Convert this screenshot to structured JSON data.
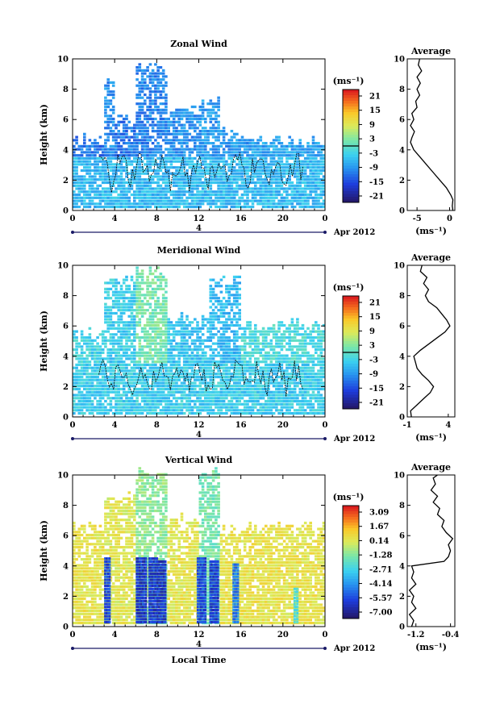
{
  "chart_data": [
    {
      "type": "heatmap",
      "title": "Zonal Wind",
      "xlabel": "",
      "ylabel": "Height (km)",
      "xlim": [
        0,
        24
      ],
      "ylim": [
        0,
        10
      ],
      "x_ticks": [
        "0",
        "4",
        "8",
        "12",
        "16",
        "20",
        "0"
      ],
      "y_ticks": [
        "0",
        "2",
        "4",
        "6",
        "8",
        "10"
      ],
      "date_axis": {
        "mid_label": "4",
        "label": "Apr 2012"
      },
      "colorbar": {
        "unit": "(ms⁻¹)",
        "ticks": [
          "21",
          "15",
          "9",
          "3",
          "-3",
          "-9",
          "-15",
          "-21"
        ],
        "zero_line_value": 0
      },
      "field": {
        "columns": [
          {
            "x0": 0,
            "x1": 3,
            "top": 4.6,
            "base_value": -12
          },
          {
            "x0": 3,
            "x1": 4,
            "top": 8.5,
            "base_value": -10
          },
          {
            "x0": 4,
            "x1": 6,
            "top": 6.0,
            "base_value": -12
          },
          {
            "x0": 6,
            "x1": 9,
            "top": 9.5,
            "base_value": -11
          },
          {
            "x0": 9,
            "x1": 12,
            "top": 6.5,
            "base_value": -10
          },
          {
            "x0": 12,
            "x1": 14,
            "top": 7.2,
            "base_value": -9
          },
          {
            "x0": 14,
            "x1": 17,
            "top": 5.2,
            "base_value": -9
          },
          {
            "x0": 17,
            "x1": 24,
            "top": 4.5,
            "base_value": -8
          }
        ],
        "low_level_value": -6
      },
      "profile": {
        "title": "Average",
        "xlabel": "(ms⁻¹)",
        "x_ticks": [
          "-5",
          "0"
        ],
        "xlim": [
          -6.5,
          0.8
        ],
        "y": [
          0.0,
          0.3,
          0.7,
          1.0,
          1.5,
          2.0,
          2.5,
          3.0,
          3.5,
          4.0,
          4.5,
          4.8,
          5.2,
          5.6,
          6.0,
          6.4,
          6.8,
          7.2,
          7.6,
          8.0,
          8.4,
          8.8,
          9.2,
          9.6,
          10.0
        ],
        "values": [
          0.5,
          0.4,
          0.5,
          0.2,
          -0.5,
          -1.5,
          -2.5,
          -3.5,
          -4.5,
          -5.5,
          -6.0,
          -5.8,
          -5.4,
          -6.0,
          -5.5,
          -5.8,
          -5.0,
          -5.2,
          -4.6,
          -5.0,
          -4.5,
          -5.0,
          -4.3,
          -4.8,
          -4.6
        ]
      }
    },
    {
      "type": "heatmap",
      "title": "Meridional Wind",
      "xlabel": "",
      "ylabel": "Height (km)",
      "xlim": [
        0,
        24
      ],
      "ylim": [
        0,
        10
      ],
      "x_ticks": [
        "0",
        "4",
        "8",
        "12",
        "16",
        "20",
        "0"
      ],
      "y_ticks": [
        "0",
        "2",
        "4",
        "6",
        "8",
        "10"
      ],
      "date_axis": {
        "mid_label": "4",
        "label": "Apr 2012"
      },
      "colorbar": {
        "unit": "(ms⁻¹)",
        "ticks": [
          "21",
          "15",
          "9",
          "3",
          "-3",
          "-9",
          "-15",
          "-21"
        ],
        "zero_line_value": 0
      },
      "field": {
        "columns": [
          {
            "x0": 0,
            "x1": 3,
            "top": 5.5,
            "base_value": -3
          },
          {
            "x0": 3,
            "x1": 6,
            "top": 9.0,
            "base_value": -4
          },
          {
            "x0": 6,
            "x1": 9,
            "top": 9.5,
            "base_value": 2
          },
          {
            "x0": 9,
            "x1": 13,
            "top": 6.5,
            "base_value": -5
          },
          {
            "x0": 13,
            "x1": 16,
            "top": 9.0,
            "base_value": -6
          },
          {
            "x0": 16,
            "x1": 24,
            "top": 6.0,
            "base_value": -2
          }
        ],
        "low_level_value": -4
      },
      "profile": {
        "title": "Average",
        "xlabel": "(ms⁻¹)",
        "x_ticks": [
          "-1",
          "4"
        ],
        "xlim": [
          -1.0,
          4.8
        ],
        "y": [
          0.0,
          0.4,
          0.8,
          1.2,
          1.6,
          2.0,
          2.4,
          2.8,
          3.2,
          3.6,
          4.0,
          4.4,
          4.8,
          5.2,
          5.6,
          6.0,
          6.4,
          6.8,
          7.2,
          7.6,
          8.0,
          8.4,
          8.8,
          9.2,
          9.6,
          10.0
        ],
        "values": [
          -0.5,
          -0.6,
          0.2,
          1.0,
          1.8,
          2.2,
          1.6,
          0.8,
          0.2,
          0.0,
          -0.2,
          0.6,
          1.6,
          2.6,
          3.6,
          4.2,
          3.8,
          3.2,
          2.6,
          1.6,
          1.2,
          1.6,
          1.0,
          1.4,
          0.6,
          0.8
        ]
      }
    },
    {
      "type": "heatmap",
      "title": "Vertical Wind",
      "xlabel": "Local Time",
      "ylabel": "Height (km)",
      "xlim": [
        0,
        24
      ],
      "ylim": [
        0,
        10
      ],
      "x_ticks": [
        "0",
        "4",
        "8",
        "12",
        "16",
        "20",
        "0"
      ],
      "y_ticks": [
        "0",
        "2",
        "4",
        "6",
        "8",
        "10"
      ],
      "date_axis": {
        "mid_label": "4",
        "label": "Apr 2012"
      },
      "colorbar": {
        "unit": "(ms⁻¹)",
        "ticks": [
          "3.09",
          "1.67",
          "0.14",
          "-1.28",
          "-2.71",
          "-4.14",
          "-5.57",
          "-7.00"
        ]
      },
      "field": {
        "columns": [
          {
            "x0": 0,
            "x1": 3,
            "top": 6.5,
            "base_value": 0.5
          },
          {
            "x0": 3,
            "x1": 6,
            "top": 8.5,
            "base_value": 0.3
          },
          {
            "x0": 6,
            "x1": 9,
            "top": 10.0,
            "base_value": -1.0
          },
          {
            "x0": 9,
            "x1": 12,
            "top": 7.0,
            "base_value": 0.4
          },
          {
            "x0": 12,
            "x1": 14,
            "top": 10.0,
            "base_value": -1.5
          },
          {
            "x0": 14,
            "x1": 24,
            "top": 6.5,
            "base_value": 0.5
          }
        ],
        "downdrafts": [
          {
            "x0": 3.0,
            "x1": 3.5,
            "top": 4.5,
            "value": -6.5
          },
          {
            "x0": 6.0,
            "x1": 7.0,
            "top": 4.5,
            "value": -7.0
          },
          {
            "x0": 7.2,
            "x1": 8.0,
            "top": 4.5,
            "value": -6.8
          },
          {
            "x0": 8.0,
            "x1": 8.8,
            "top": 4.3,
            "value": -7.0
          },
          {
            "x0": 11.8,
            "x1": 12.6,
            "top": 4.5,
            "value": -6.5
          },
          {
            "x0": 13.0,
            "x1": 13.8,
            "top": 4.3,
            "value": -6.8
          },
          {
            "x0": 15.2,
            "x1": 15.8,
            "top": 4.2,
            "value": -5.5
          },
          {
            "x0": 21.0,
            "x1": 21.4,
            "top": 2.5,
            "value": -3.0
          }
        ]
      },
      "profile": {
        "title": "Average",
        "xlabel": "(ms⁻¹)",
        "x_ticks": [
          "-1.2",
          "-0.4"
        ],
        "xlim": [
          -1.4,
          -0.3
        ],
        "y": [
          0.0,
          0.4,
          0.8,
          1.2,
          1.6,
          2.0,
          2.4,
          2.8,
          3.2,
          3.6,
          4.0,
          4.3,
          4.6,
          5.0,
          5.4,
          5.8,
          6.2,
          6.6,
          7.0,
          7.4,
          7.8,
          8.2,
          8.6,
          9.0,
          9.4,
          9.8,
          10.0
        ],
        "values": [
          -1.3,
          -1.25,
          -1.35,
          -1.2,
          -1.3,
          -1.25,
          -1.35,
          -1.2,
          -1.3,
          -1.25,
          -1.3,
          -0.55,
          -0.45,
          -0.4,
          -0.45,
          -0.35,
          -0.5,
          -0.6,
          -0.55,
          -0.7,
          -0.65,
          -0.8,
          -0.7,
          -0.85,
          -0.75,
          -0.8,
          -0.7
        ]
      }
    }
  ]
}
